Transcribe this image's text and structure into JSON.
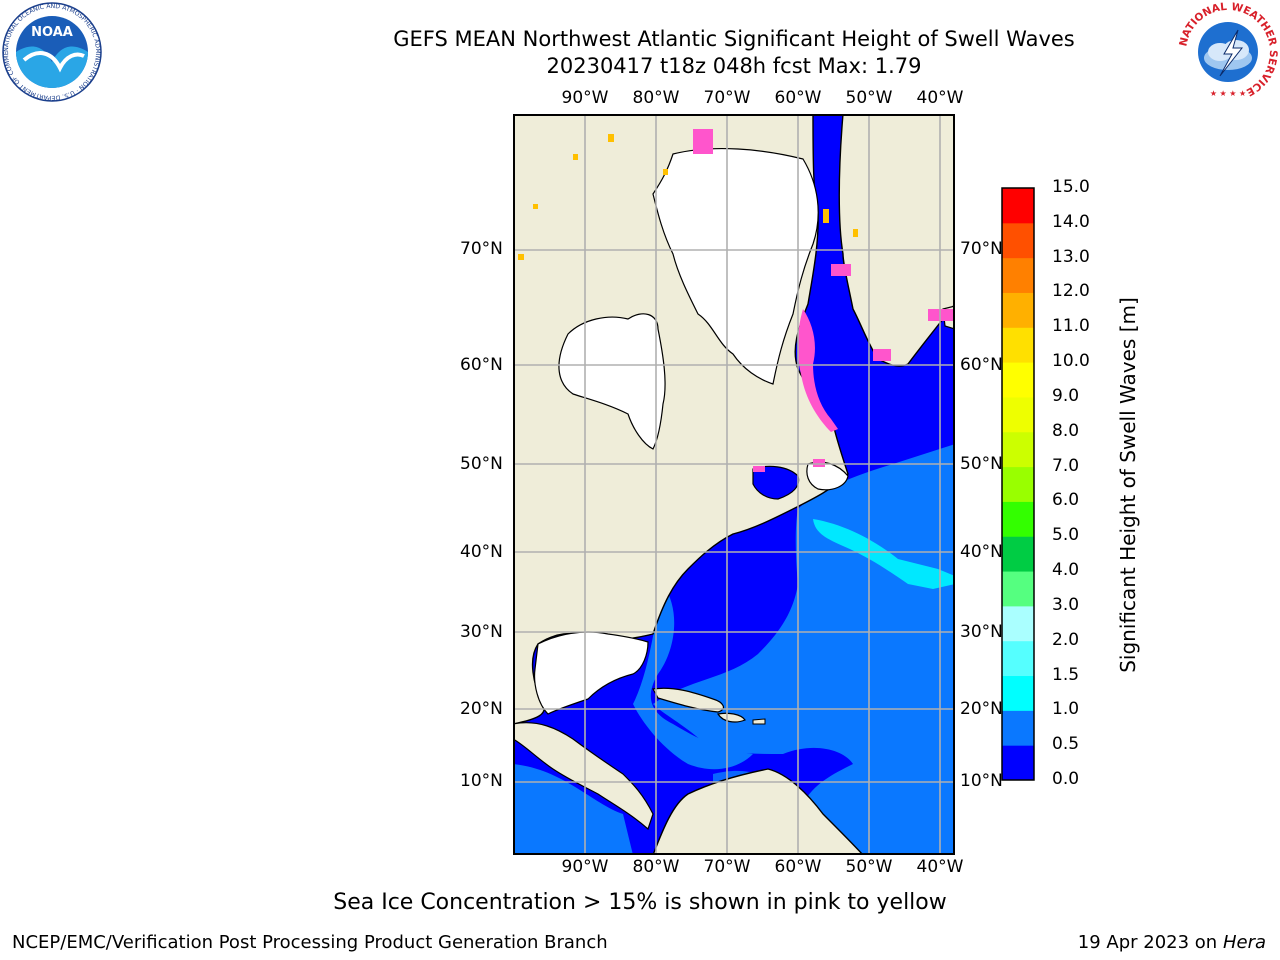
{
  "title": {
    "line1": "GEFS MEAN Northwest Atlantic Significant Height of Swell Waves",
    "line2": "20230417 t18z 048h fcst   Max: 1.79"
  },
  "map": {
    "lon_labels": [
      "90°W",
      "80°W",
      "70°W",
      "60°W",
      "50°W",
      "40°W"
    ],
    "lat_labels": [
      "70°N",
      "60°N",
      "50°N",
      "40°N",
      "30°N",
      "20°N",
      "10°N"
    ],
    "colors": {
      "land": "#efedd9",
      "ice": "#ffffff",
      "wave_0_05": "#0000ff",
      "wave_05_10": "#0a78ff",
      "wave_10_15": "#00e8ff",
      "ice_pink": "#ff55cc",
      "ice_yellow": "#ffc000",
      "grid": "#b0b0b0"
    }
  },
  "colorbar": {
    "label": "Significant Height of Swell Waves [m]",
    "ticks": [
      "15.0",
      "14.0",
      "13.0",
      "12.0",
      "11.0",
      "10.0",
      "9.0",
      "8.0",
      "7.0",
      "6.0",
      "5.0",
      "4.0",
      "3.0",
      "2.0",
      "1.5",
      "1.0",
      "0.5",
      "0.0"
    ],
    "levels": [
      {
        "from": "0.0",
        "color": "#0000ff"
      },
      {
        "from": "0.5",
        "color": "#0a78ff"
      },
      {
        "from": "1.0",
        "color": "#00ffff"
      },
      {
        "from": "1.5",
        "color": "#55ffff"
      },
      {
        "from": "2.0",
        "color": "#aaffff"
      },
      {
        "from": "3.0",
        "color": "#55ff80"
      },
      {
        "from": "4.0",
        "color": "#00cc44"
      },
      {
        "from": "5.0",
        "color": "#33ff00"
      },
      {
        "from": "6.0",
        "color": "#99ff00"
      },
      {
        "from": "7.0",
        "color": "#ccff00"
      },
      {
        "from": "8.0",
        "color": "#eeff00"
      },
      {
        "from": "9.0",
        "color": "#ffff00"
      },
      {
        "from": "10.0",
        "color": "#ffe000"
      },
      {
        "from": "11.0",
        "color": "#ffb000"
      },
      {
        "from": "12.0",
        "color": "#ff8000"
      },
      {
        "from": "13.0",
        "color": "#ff5000"
      },
      {
        "from": "14.0",
        "color": "#ff0000"
      }
    ]
  },
  "logos": {
    "noaa_text": "NOAA",
    "noaa_ring": "NATIONAL OCEANIC AND ATMOSPHERIC ADMINISTRATION · U.S. DEPARTMENT OF COMMERCE",
    "nws_ring": "NATIONAL WEATHER SERVICE"
  },
  "footer": {
    "note": "Sea Ice Concentration > 15% is shown in pink to yellow",
    "credit": "NCEP/EMC/Verification Post Processing Product Generation Branch",
    "stamp_prefix": "19 Apr 2023 on ",
    "stamp_host": "Hera"
  }
}
